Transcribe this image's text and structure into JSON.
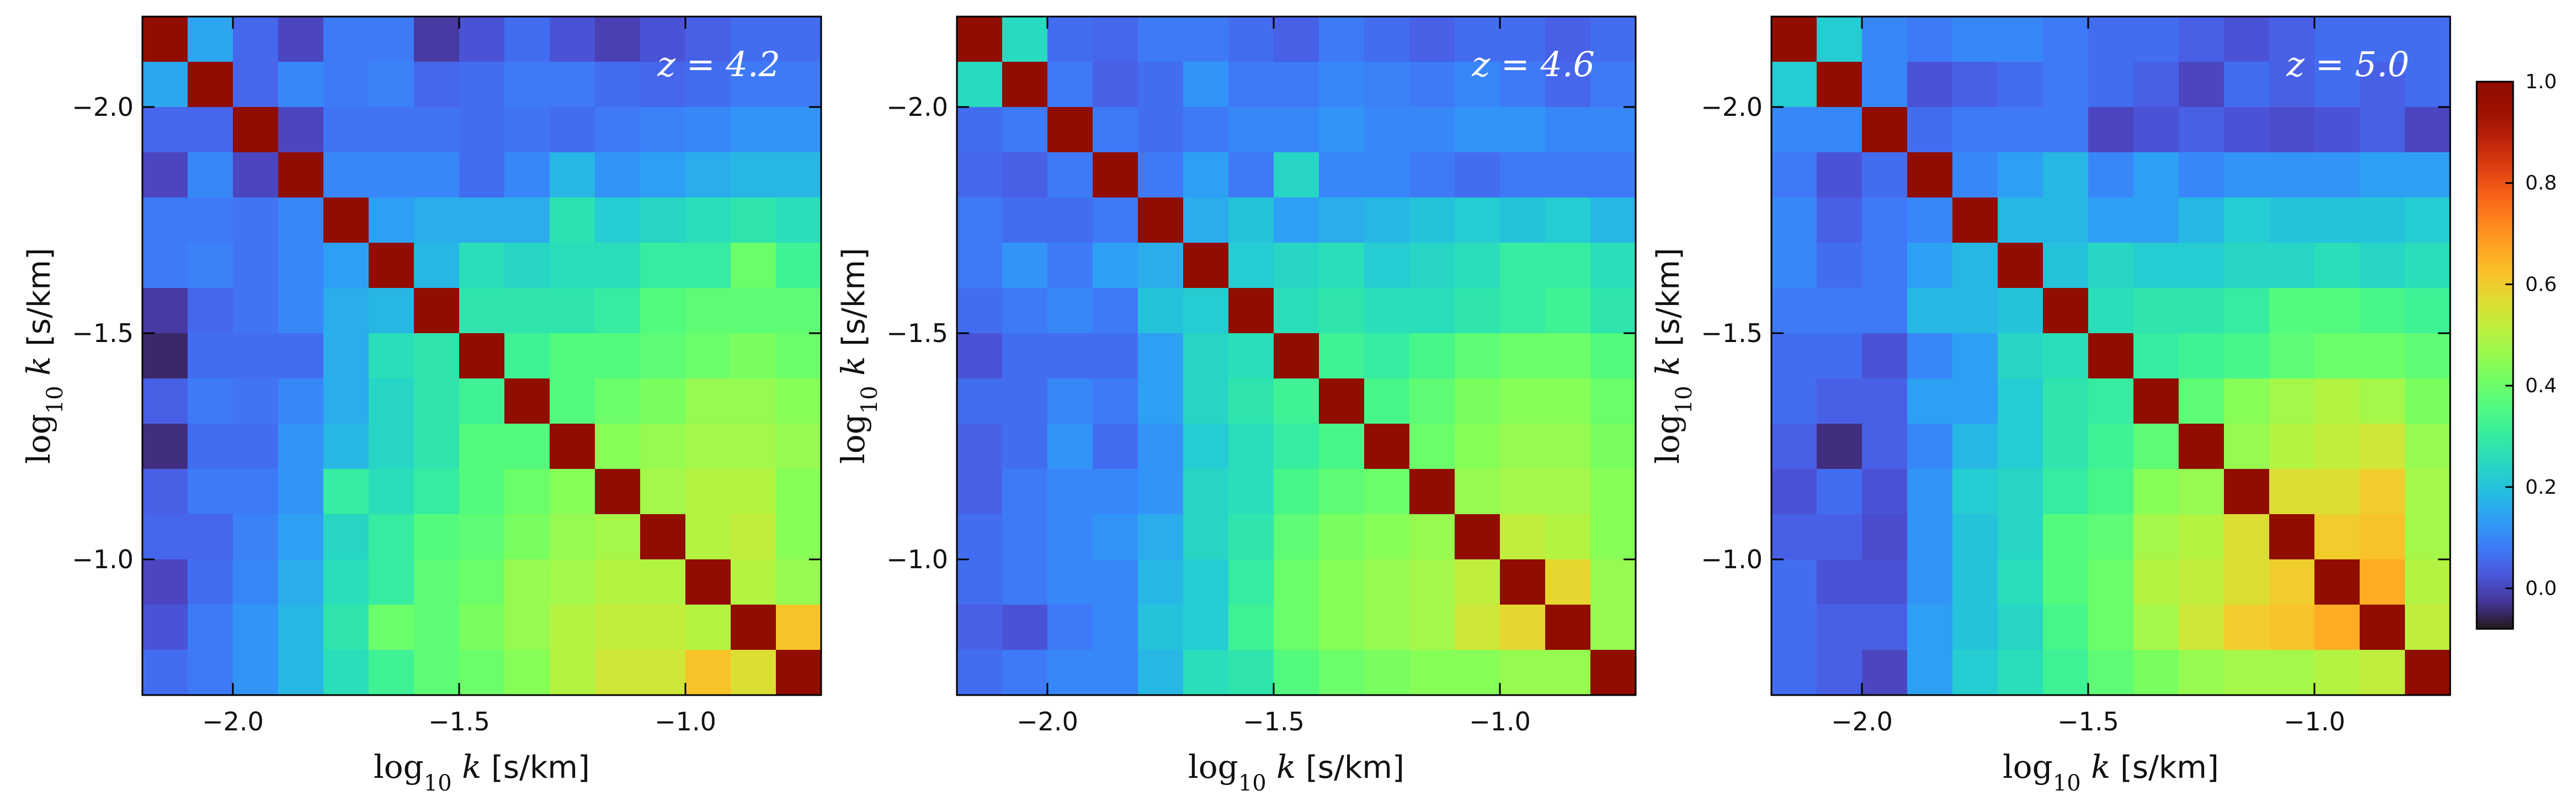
{
  "chart_data": [
    {
      "type": "heatmap",
      "panel_label": "z = 4.2",
      "xlabel": "log10 k  [s/km]",
      "ylabel": "log10 k  [s/km]",
      "x_ticks": [
        -2.0,
        -1.5,
        -1.0
      ],
      "y_ticks": [
        -2.0,
        -1.5,
        -1.0
      ],
      "x_tick_labels": [
        "−2.0",
        "−1.5",
        "−1.0"
      ],
      "y_tick_labels": [
        "−2.0",
        "−1.5",
        "−1.0"
      ],
      "range": [
        -2.2,
        -0.7
      ],
      "colorbar": {
        "min": -0.08,
        "max": 1.0
      },
      "matrix": [
        [
          1.0,
          0.15,
          0.05,
          0.0,
          0.08,
          0.08,
          -0.02,
          0.02,
          0.06,
          0.02,
          -0.01,
          0.02,
          0.04,
          0.06,
          0.06
        ],
        [
          0.15,
          1.0,
          0.05,
          0.1,
          0.08,
          0.09,
          0.05,
          0.06,
          0.08,
          0.08,
          0.06,
          0.05,
          0.06,
          0.08,
          0.08
        ],
        [
          0.05,
          0.05,
          1.0,
          0.0,
          0.07,
          0.07,
          0.07,
          0.06,
          0.07,
          0.06,
          0.08,
          0.09,
          0.1,
          0.12,
          0.12
        ],
        [
          0.0,
          0.1,
          0.0,
          1.0,
          0.1,
          0.1,
          0.1,
          0.06,
          0.1,
          0.18,
          0.12,
          0.14,
          0.16,
          0.18,
          0.18
        ],
        [
          0.08,
          0.08,
          0.07,
          0.1,
          1.0,
          0.14,
          0.16,
          0.16,
          0.16,
          0.27,
          0.22,
          0.24,
          0.26,
          0.28,
          0.26
        ],
        [
          0.08,
          0.09,
          0.07,
          0.1,
          0.14,
          1.0,
          0.18,
          0.26,
          0.24,
          0.26,
          0.26,
          0.3,
          0.3,
          0.4,
          0.32
        ],
        [
          -0.02,
          0.05,
          0.07,
          0.1,
          0.16,
          0.18,
          1.0,
          0.28,
          0.28,
          0.28,
          0.3,
          0.36,
          0.38,
          0.38,
          0.38
        ],
        [
          -0.05,
          0.06,
          0.06,
          0.06,
          0.16,
          0.26,
          0.28,
          1.0,
          0.32,
          0.36,
          0.36,
          0.38,
          0.4,
          0.42,
          0.4
        ],
        [
          0.04,
          0.08,
          0.07,
          0.1,
          0.16,
          0.24,
          0.28,
          0.32,
          1.0,
          0.36,
          0.4,
          0.42,
          0.46,
          0.46,
          0.44
        ],
        [
          -0.04,
          0.06,
          0.06,
          0.12,
          0.18,
          0.24,
          0.28,
          0.36,
          0.36,
          1.0,
          0.44,
          0.46,
          0.48,
          0.48,
          0.46
        ],
        [
          0.04,
          0.08,
          0.08,
          0.12,
          0.3,
          0.26,
          0.3,
          0.36,
          0.4,
          0.44,
          1.0,
          0.48,
          0.5,
          0.5,
          0.44
        ],
        [
          0.05,
          0.05,
          0.09,
          0.14,
          0.24,
          0.3,
          0.36,
          0.38,
          0.42,
          0.46,
          0.48,
          1.0,
          0.5,
          0.52,
          0.44
        ],
        [
          0.0,
          0.06,
          0.1,
          0.16,
          0.26,
          0.3,
          0.38,
          0.4,
          0.46,
          0.48,
          0.5,
          0.5,
          1.0,
          0.5,
          0.46
        ],
        [
          0.02,
          0.08,
          0.12,
          0.18,
          0.28,
          0.4,
          0.38,
          0.42,
          0.46,
          0.5,
          0.52,
          0.52,
          0.5,
          1.0,
          0.62
        ],
        [
          0.06,
          0.08,
          0.12,
          0.18,
          0.26,
          0.32,
          0.38,
          0.4,
          0.44,
          0.5,
          0.54,
          0.54,
          0.62,
          0.56,
          1.0
        ]
      ]
    },
    {
      "type": "heatmap",
      "panel_label": "z = 4.6",
      "xlabel": "log10 k  [s/km]",
      "ylabel": "log10 k  [s/km]",
      "x_ticks": [
        -2.0,
        -1.5,
        -1.0
      ],
      "y_ticks": [
        -2.0,
        -1.5,
        -1.0
      ],
      "x_tick_labels": [
        "−2.0",
        "−1.5",
        "−1.0"
      ],
      "y_tick_labels": [
        "−2.0",
        "−1.5",
        "−1.0"
      ],
      "range": [
        -2.2,
        -0.7
      ],
      "colorbar": {
        "min": -0.08,
        "max": 1.0
      },
      "matrix": [
        [
          1.0,
          0.25,
          0.06,
          0.05,
          0.08,
          0.08,
          0.06,
          0.04,
          0.08,
          0.06,
          0.04,
          0.06,
          0.06,
          0.04,
          0.06
        ],
        [
          0.25,
          1.0,
          0.08,
          0.04,
          0.06,
          0.12,
          0.08,
          0.08,
          0.1,
          0.09,
          0.08,
          0.1,
          0.08,
          0.05,
          0.08
        ],
        [
          0.06,
          0.08,
          1.0,
          0.08,
          0.06,
          0.08,
          0.1,
          0.1,
          0.12,
          0.1,
          0.1,
          0.12,
          0.12,
          0.1,
          0.1
        ],
        [
          0.05,
          0.04,
          0.08,
          1.0,
          0.08,
          0.14,
          0.08,
          0.24,
          0.1,
          0.1,
          0.08,
          0.06,
          0.08,
          0.08,
          0.08
        ],
        [
          0.08,
          0.06,
          0.06,
          0.08,
          1.0,
          0.16,
          0.2,
          0.14,
          0.16,
          0.18,
          0.2,
          0.22,
          0.2,
          0.22,
          0.18
        ],
        [
          0.08,
          0.12,
          0.08,
          0.14,
          0.16,
          1.0,
          0.22,
          0.24,
          0.26,
          0.22,
          0.24,
          0.26,
          0.3,
          0.3,
          0.26
        ],
        [
          0.06,
          0.08,
          0.1,
          0.08,
          0.2,
          0.22,
          1.0,
          0.26,
          0.28,
          0.26,
          0.26,
          0.28,
          0.3,
          0.32,
          0.28
        ],
        [
          0.02,
          0.06,
          0.06,
          0.06,
          0.14,
          0.24,
          0.26,
          1.0,
          0.32,
          0.3,
          0.34,
          0.38,
          0.4,
          0.4,
          0.36
        ],
        [
          0.06,
          0.06,
          0.1,
          0.08,
          0.14,
          0.24,
          0.28,
          0.32,
          1.0,
          0.34,
          0.38,
          0.42,
          0.44,
          0.44,
          0.4
        ],
        [
          0.04,
          0.06,
          0.12,
          0.06,
          0.12,
          0.22,
          0.26,
          0.3,
          0.34,
          1.0,
          0.4,
          0.44,
          0.46,
          0.46,
          0.42
        ],
        [
          0.04,
          0.08,
          0.1,
          0.1,
          0.12,
          0.24,
          0.26,
          0.34,
          0.38,
          0.4,
          1.0,
          0.46,
          0.48,
          0.48,
          0.44
        ],
        [
          0.06,
          0.08,
          0.1,
          0.12,
          0.16,
          0.24,
          0.28,
          0.38,
          0.42,
          0.44,
          0.46,
          1.0,
          0.52,
          0.5,
          0.44
        ],
        [
          0.06,
          0.08,
          0.1,
          0.1,
          0.18,
          0.22,
          0.3,
          0.4,
          0.44,
          0.46,
          0.48,
          0.52,
          1.0,
          0.58,
          0.46
        ],
        [
          0.04,
          0.02,
          0.08,
          0.1,
          0.2,
          0.22,
          0.32,
          0.4,
          0.44,
          0.46,
          0.48,
          0.54,
          0.58,
          1.0,
          0.46
        ],
        [
          0.06,
          0.08,
          0.1,
          0.1,
          0.18,
          0.26,
          0.28,
          0.36,
          0.4,
          0.42,
          0.44,
          0.44,
          0.46,
          0.46,
          1.0
        ]
      ]
    },
    {
      "type": "heatmap",
      "panel_label": "z = 5.0",
      "xlabel": "log10 k  [s/km]",
      "ylabel": "log10 k  [s/km]",
      "x_ticks": [
        -2.0,
        -1.5,
        -1.0
      ],
      "y_ticks": [
        -2.0,
        -1.5,
        -1.0
      ],
      "x_tick_labels": [
        "−2.0",
        "−1.5",
        "−1.0"
      ],
      "y_tick_labels": [
        "−2.0",
        "−1.5",
        "−1.0"
      ],
      "range": [
        -2.2,
        -0.7
      ],
      "colorbar": {
        "min": -0.08,
        "max": 1.0,
        "ticks": [
          0.0,
          0.2,
          0.4,
          0.6,
          0.8,
          1.0
        ]
      },
      "matrix": [
        [
          1.0,
          0.22,
          0.1,
          0.08,
          0.1,
          0.1,
          0.08,
          0.06,
          0.06,
          0.04,
          0.02,
          0.04,
          0.06,
          0.06,
          0.06
        ],
        [
          0.22,
          1.0,
          0.1,
          0.02,
          0.04,
          0.06,
          0.08,
          0.06,
          0.04,
          0.0,
          0.06,
          0.04,
          0.06,
          0.04,
          0.06
        ],
        [
          0.1,
          0.1,
          1.0,
          0.06,
          0.08,
          0.08,
          0.08,
          0.0,
          0.02,
          0.04,
          0.02,
          0.01,
          0.02,
          0.04,
          0.0
        ],
        [
          0.08,
          0.02,
          0.06,
          1.0,
          0.1,
          0.14,
          0.18,
          0.1,
          0.14,
          0.1,
          0.12,
          0.12,
          0.12,
          0.14,
          0.14
        ],
        [
          0.1,
          0.04,
          0.08,
          0.1,
          1.0,
          0.18,
          0.18,
          0.14,
          0.14,
          0.18,
          0.22,
          0.2,
          0.2,
          0.2,
          0.22
        ],
        [
          0.1,
          0.06,
          0.08,
          0.14,
          0.18,
          1.0,
          0.2,
          0.24,
          0.22,
          0.22,
          0.24,
          0.24,
          0.26,
          0.24,
          0.26
        ],
        [
          0.08,
          0.08,
          0.08,
          0.18,
          0.18,
          0.2,
          1.0,
          0.26,
          0.28,
          0.28,
          0.3,
          0.36,
          0.36,
          0.34,
          0.32
        ],
        [
          0.06,
          0.06,
          0.02,
          0.1,
          0.14,
          0.24,
          0.26,
          1.0,
          0.3,
          0.32,
          0.34,
          0.38,
          0.4,
          0.4,
          0.38
        ],
        [
          0.06,
          0.04,
          0.04,
          0.14,
          0.14,
          0.22,
          0.28,
          0.3,
          1.0,
          0.38,
          0.44,
          0.48,
          0.5,
          0.48,
          0.42
        ],
        [
          0.04,
          -0.04,
          0.04,
          0.1,
          0.18,
          0.22,
          0.28,
          0.32,
          0.38,
          1.0,
          0.46,
          0.5,
          0.52,
          0.54,
          0.46
        ],
        [
          0.02,
          0.06,
          0.02,
          0.12,
          0.22,
          0.24,
          0.3,
          0.34,
          0.44,
          0.46,
          1.0,
          0.56,
          0.56,
          0.6,
          0.48
        ],
        [
          0.04,
          0.04,
          0.01,
          0.12,
          0.2,
          0.24,
          0.36,
          0.38,
          0.48,
          0.5,
          0.56,
          1.0,
          0.6,
          0.62,
          0.48
        ],
        [
          0.06,
          0.02,
          0.02,
          0.12,
          0.2,
          0.26,
          0.36,
          0.4,
          0.5,
          0.52,
          0.56,
          0.6,
          1.0,
          0.66,
          0.5
        ],
        [
          0.06,
          0.04,
          0.04,
          0.14,
          0.2,
          0.24,
          0.34,
          0.4,
          0.48,
          0.54,
          0.6,
          0.62,
          0.66,
          1.0,
          0.52
        ],
        [
          0.06,
          0.04,
          0.0,
          0.14,
          0.22,
          0.26,
          0.32,
          0.38,
          0.42,
          0.46,
          0.48,
          0.48,
          0.5,
          0.52,
          1.0
        ]
      ]
    }
  ]
}
